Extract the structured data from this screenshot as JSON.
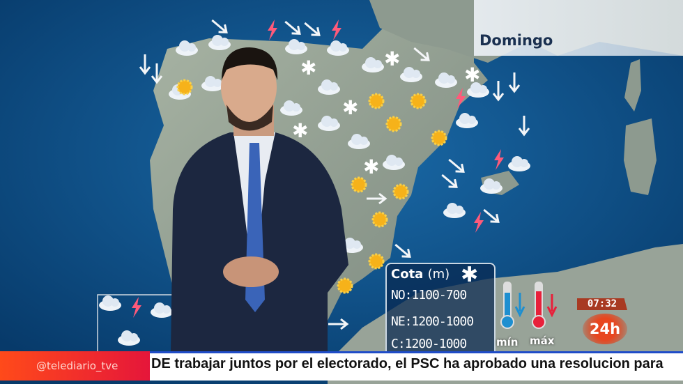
{
  "broadcast": {
    "day": "Domingo",
    "snow_level": {
      "title": "Cota",
      "unit": "(m)",
      "icon": "snowflake-icon",
      "rows": [
        "NO:1100-700",
        "NE:1200-1000",
        "C:1200-1000"
      ]
    },
    "temperature_legend": {
      "min_label": "mín",
      "max_label": "máx",
      "min_color": "#1e8fd0",
      "max_color": "#e8203a"
    },
    "clock": "07:32",
    "channel_badge": "24h",
    "ticker": {
      "handle": "@telediario_tve",
      "text": "DE trabajar juntos por el electorado, el PSC ha aprobado una resolucion para"
    }
  },
  "colors": {
    "sea": "#0d4f86",
    "land": "#8f9d93",
    "ticker_red": "#e5163a",
    "ticker_blue": "#1f4cc8"
  }
}
